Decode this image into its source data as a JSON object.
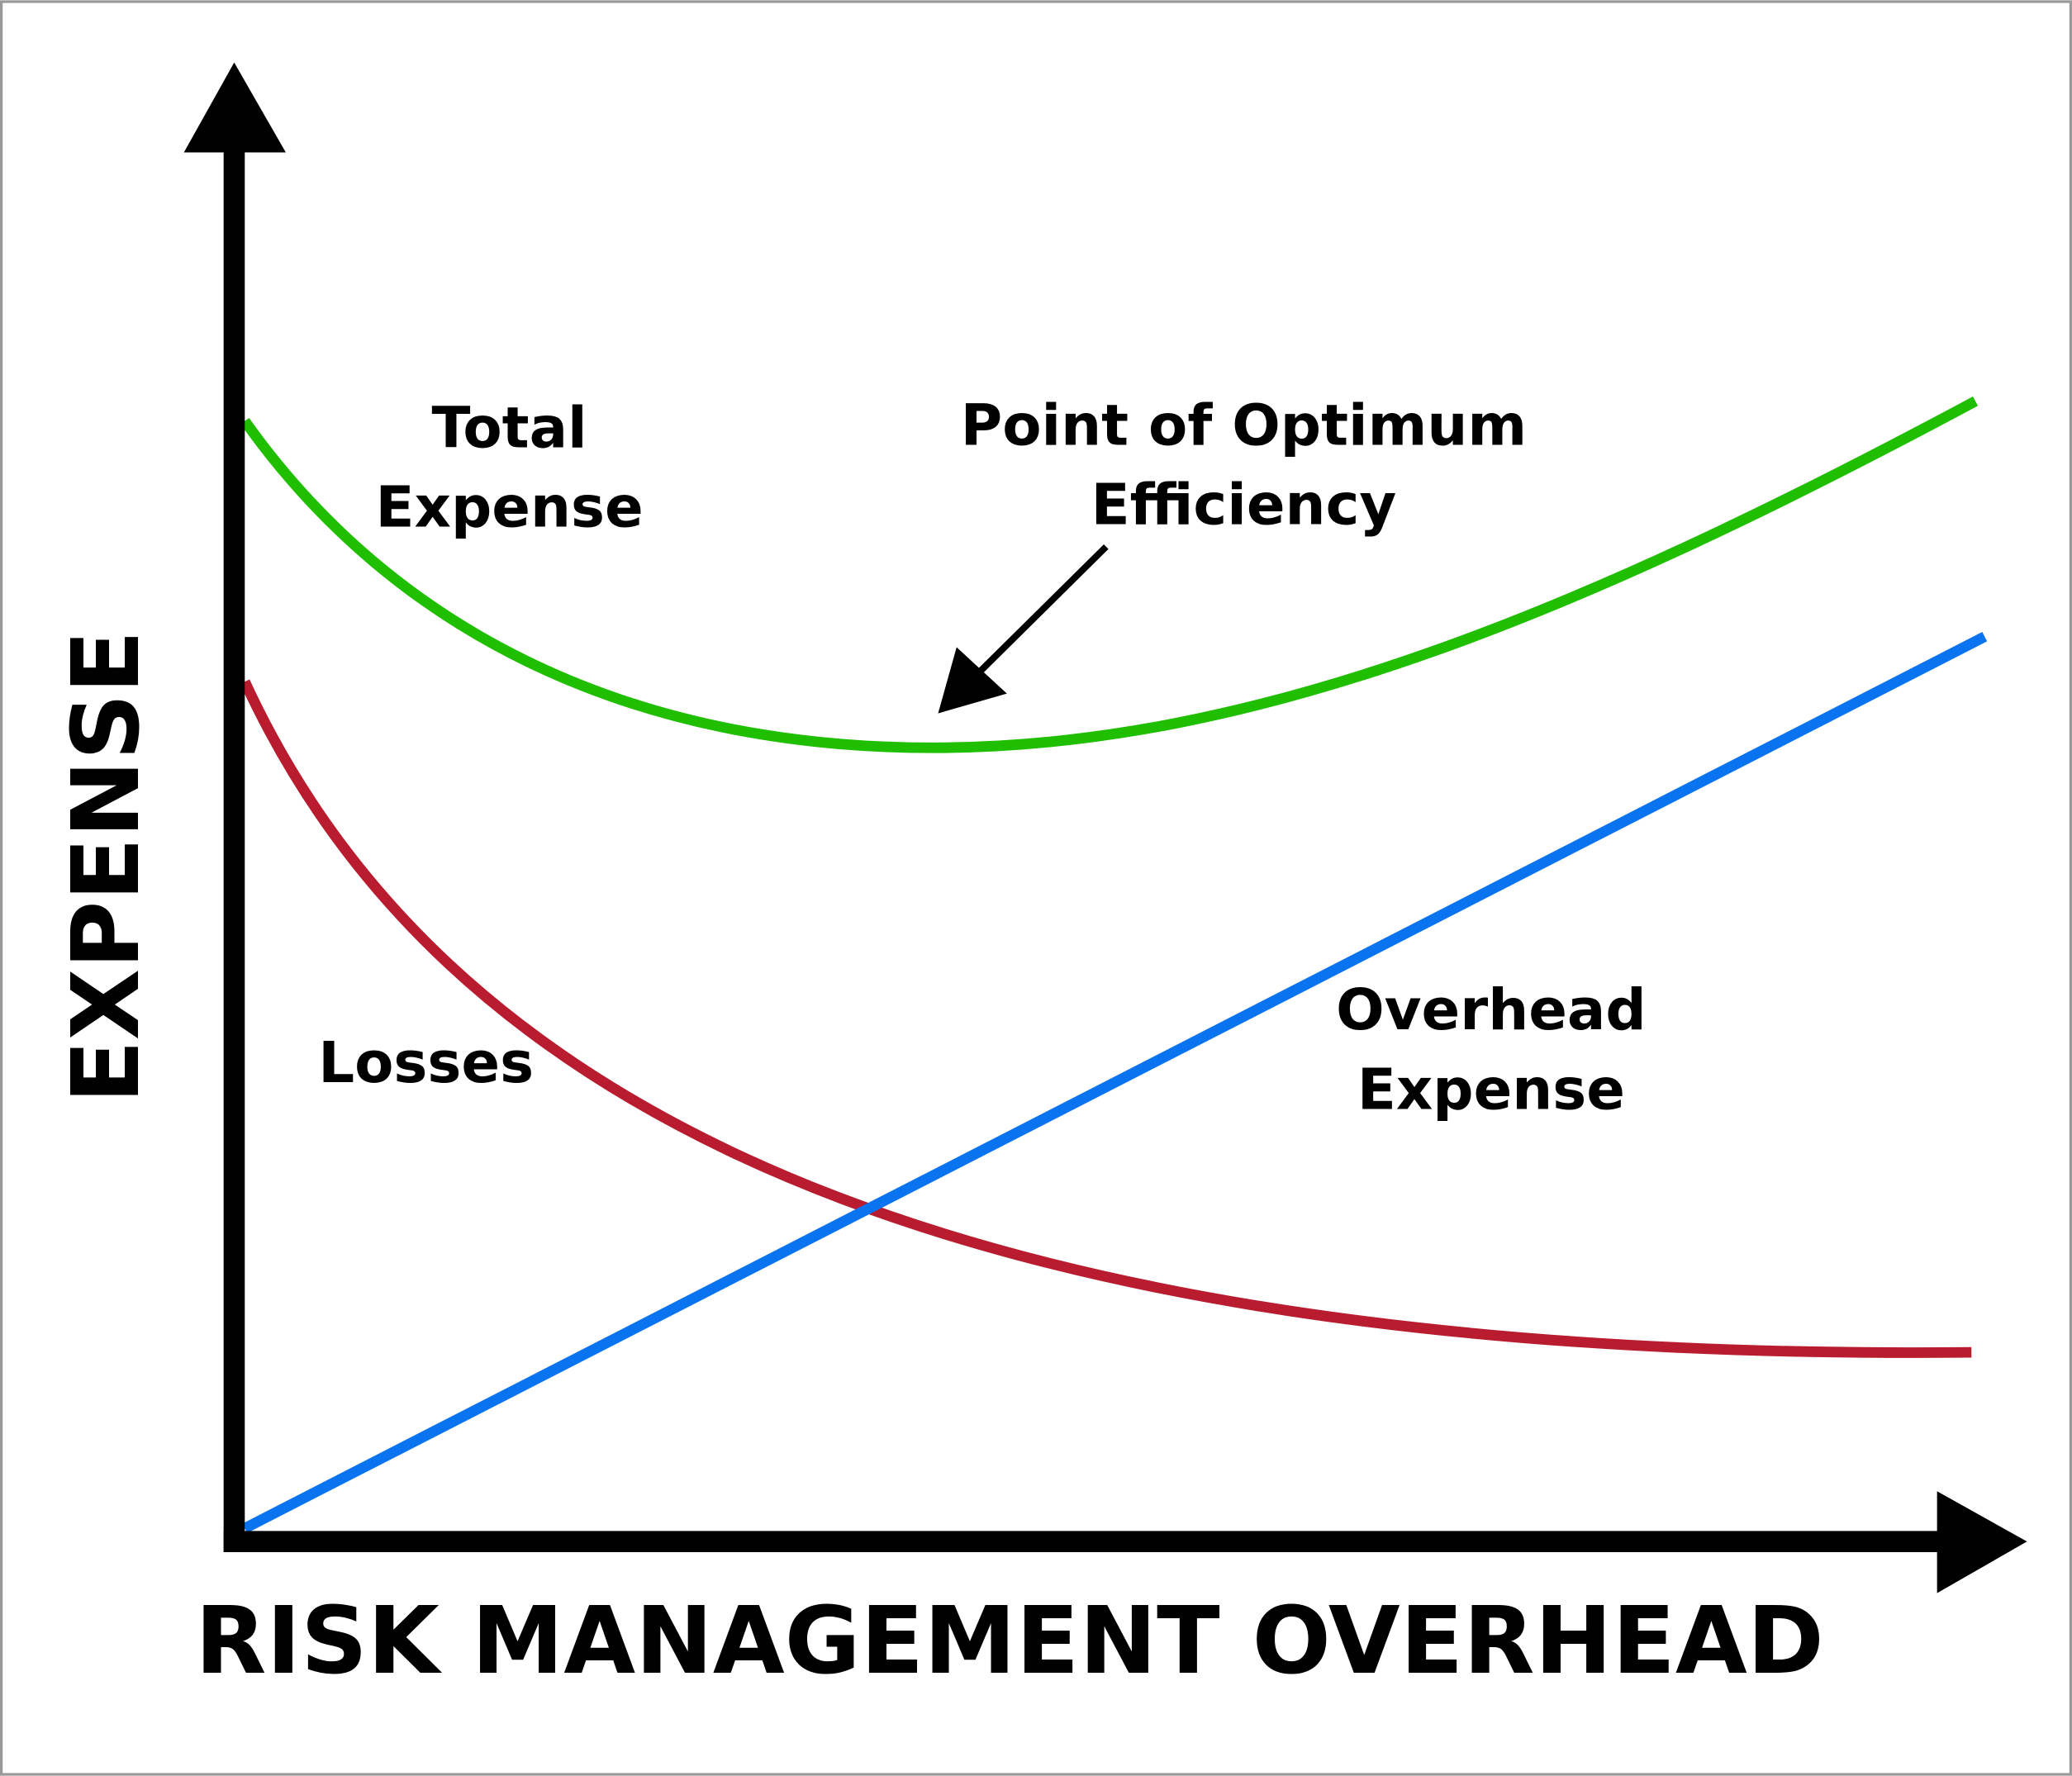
{
  "axes": {
    "y_label": "EXPENSE",
    "x_label": "RISK MANAGEMENT OVERHEAD"
  },
  "labels": {
    "total_expense": [
      "Total",
      "Expense"
    ],
    "optimum": [
      "Point of Optimum",
      "Efficiency"
    ],
    "losses": [
      "Losses"
    ],
    "overhead_expense": [
      "Overhead",
      "Expense"
    ]
  }
}
